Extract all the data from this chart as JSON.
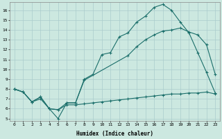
{
  "title": "",
  "xlabel": "Humidex (Indice chaleur)",
  "bg_color": "#cce8e0",
  "line_color": "#1a6e6a",
  "grid_color": "#aacccc",
  "xlim": [
    -0.5,
    23.5
  ],
  "ylim": [
    4.8,
    16.8
  ],
  "yticks": [
    5,
    6,
    7,
    8,
    9,
    10,
    11,
    12,
    13,
    14,
    15,
    16
  ],
  "xticks": [
    0,
    1,
    2,
    3,
    4,
    5,
    6,
    7,
    8,
    9,
    10,
    11,
    12,
    13,
    14,
    15,
    16,
    17,
    18,
    19,
    20,
    21,
    22,
    23
  ],
  "line1_x": [
    0,
    1,
    2,
    3,
    4,
    5,
    6,
    7,
    8,
    13,
    14,
    15,
    16,
    17,
    18,
    19,
    20,
    21,
    22,
    23
  ],
  "line1_y": [
    8.0,
    7.7,
    6.7,
    7.2,
    6.0,
    5.9,
    6.6,
    6.6,
    8.9,
    11.4,
    12.3,
    13.0,
    13.5,
    13.9,
    14.0,
    14.2,
    13.8,
    13.5,
    12.5,
    9.5
  ],
  "line2_x": [
    0,
    1,
    2,
    3,
    4,
    5,
    6,
    7,
    8,
    9,
    10,
    11,
    12,
    13,
    14,
    15,
    16,
    17,
    18,
    19,
    20,
    21,
    22,
    23
  ],
  "line2_y": [
    8.0,
    7.7,
    6.7,
    7.2,
    6.0,
    5.0,
    6.6,
    6.6,
    9.0,
    9.5,
    11.5,
    11.7,
    13.3,
    13.7,
    14.8,
    15.4,
    16.3,
    16.6,
    16.0,
    14.8,
    13.7,
    11.7,
    9.7,
    7.6
  ],
  "line3_x": [
    0,
    1,
    2,
    3,
    4,
    5,
    6,
    7,
    8,
    9,
    10,
    11,
    12,
    13,
    14,
    15,
    16,
    17,
    18,
    19,
    20,
    21,
    22,
    23
  ],
  "line3_y": [
    8.0,
    7.7,
    6.7,
    7.0,
    6.0,
    5.9,
    6.4,
    6.4,
    6.5,
    6.6,
    6.7,
    6.8,
    6.9,
    7.0,
    7.1,
    7.2,
    7.3,
    7.4,
    7.5,
    7.5,
    7.6,
    7.6,
    7.7,
    7.5
  ]
}
